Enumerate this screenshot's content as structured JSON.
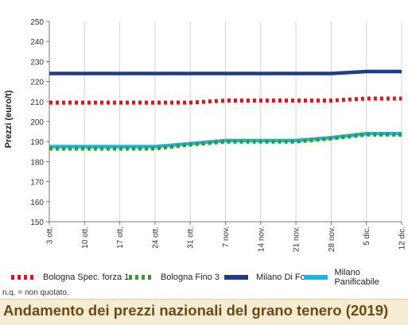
{
  "chart_data": {
    "type": "line",
    "title": "Andamento dei prezzi nazionali del grano tenero (2019)",
    "ylabel": "Prezzi (euro/t)",
    "xlabel": "",
    "ylim": [
      150,
      250
    ],
    "yticks": [
      150,
      160,
      170,
      180,
      190,
      200,
      210,
      220,
      230,
      240,
      250
    ],
    "x": [
      "3 ott.",
      "10 ott.",
      "17 ott.",
      "24 ott.",
      "31 ott.",
      "7 nov.",
      "14 nov.",
      "21 nov.",
      "28 nov.",
      "5 dic.",
      "12 dic."
    ],
    "grid": "vertical",
    "legend_position": "bottom",
    "series": [
      {
        "name": "Milano Di Forza",
        "color": "#1f3c88",
        "style": "solid",
        "values": [
          224,
          224,
          224,
          224,
          224,
          224,
          224,
          224,
          224,
          225,
          225
        ]
      },
      {
        "name": "Bologna Spec. forza 1",
        "color": "#e3121d",
        "style": "dotted",
        "values": [
          209.5,
          209.5,
          209.5,
          209.5,
          209.5,
          210.5,
          210.5,
          210.5,
          210.5,
          211.5,
          211.5
        ]
      },
      {
        "name": "Milano Panificabile",
        "color": "#1fb4e8",
        "style": "solid",
        "values": [
          187.5,
          187.5,
          187.5,
          187.5,
          189,
          190.5,
          190.5,
          190.5,
          192,
          194,
          194
        ]
      },
      {
        "name": "Bologna Fino 3",
        "color": "#3a9a2a",
        "style": "dotted",
        "values": [
          186.5,
          186.5,
          186.5,
          186.5,
          188.5,
          190,
          190,
          190,
          191.5,
          193.5,
          193.5
        ]
      }
    ]
  },
  "legend": [
    {
      "label": "Bologna Spec. forza 1",
      "color": "#e3121d",
      "style": "dotted"
    },
    {
      "label": "Bologna Fino 3",
      "color": "#3a9a2a",
      "style": "dotted"
    },
    {
      "label": "Milano Di Forza",
      "color": "#1f3c88",
      "style": "solid"
    },
    {
      "label": "Milano Panificabile",
      "color": "#1fb4e8",
      "style": "solid"
    }
  ],
  "note": "n.q. = non quotato.",
  "footer": {
    "title": "Andamento dei prezzi nazionali del grano tenero (2019)"
  }
}
